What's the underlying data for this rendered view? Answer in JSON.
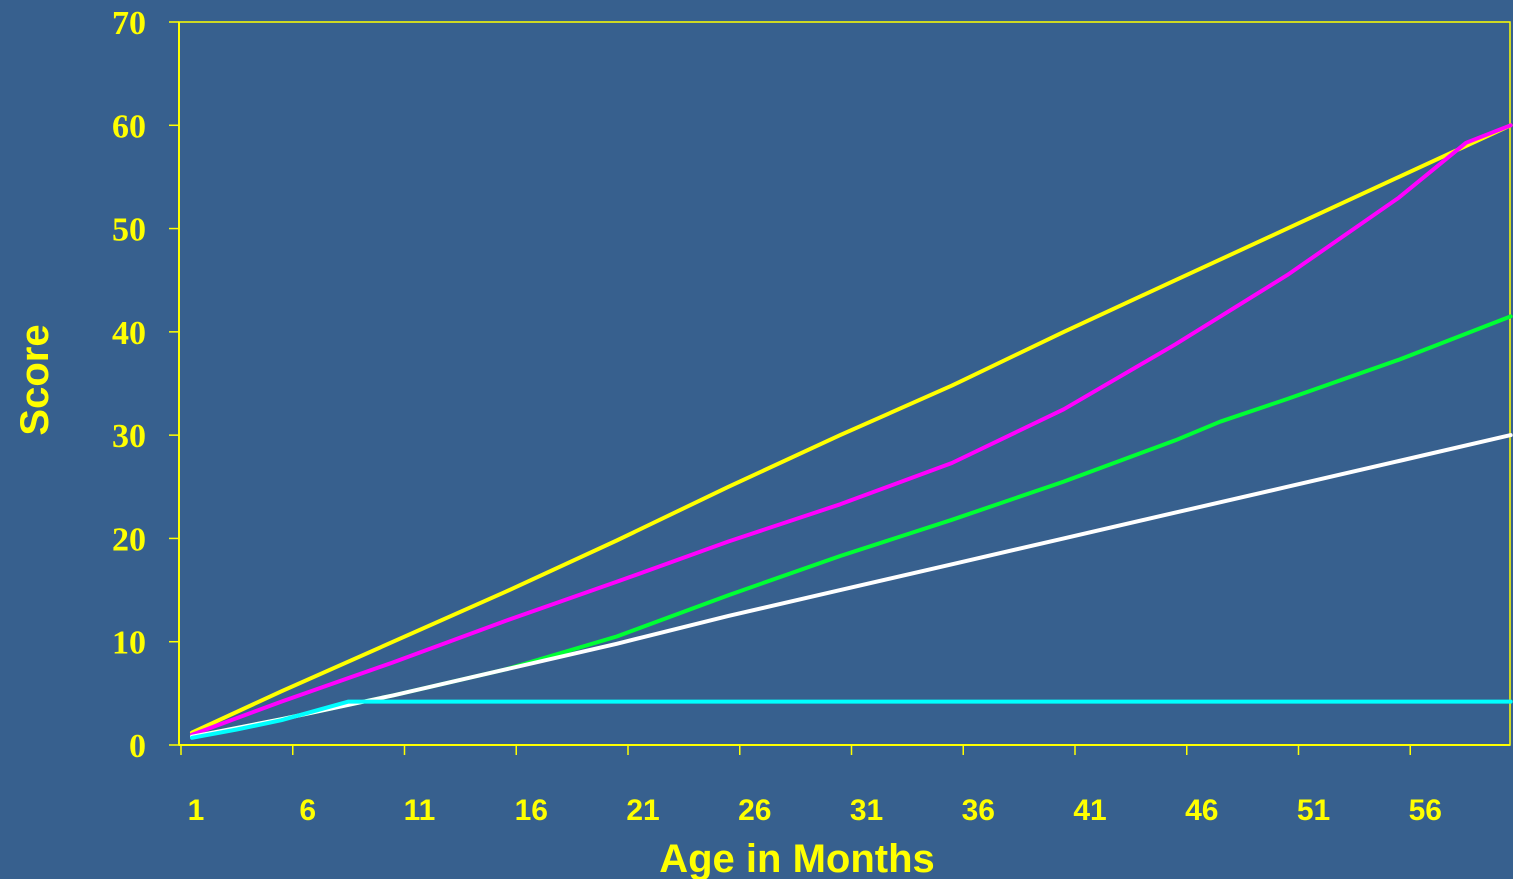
{
  "chart_data": {
    "type": "line",
    "title": "",
    "xlabel": "Age in Months",
    "ylabel": "Score",
    "xlim": [
      1,
      60
    ],
    "ylim": [
      0,
      70
    ],
    "yticks": [
      0,
      10,
      20,
      30,
      40,
      50,
      60,
      70
    ],
    "xticks": [
      1,
      6,
      11,
      16,
      21,
      26,
      31,
      36,
      41,
      46,
      51,
      56
    ],
    "grid": false,
    "colors": {
      "background": "#37608e",
      "axis": "#ffff00",
      "text": "#ffff00"
    },
    "series": [
      {
        "color": "#ffff00",
        "x": [
          1,
          5,
          10,
          15,
          20,
          25,
          30,
          35,
          40,
          45,
          50,
          55,
          60
        ],
        "y": [
          1.2,
          5.2,
          10.0,
          14.8,
          19.8,
          25.0,
          30.0,
          34.8,
          40.0,
          45.0,
          50.0,
          55.0,
          60.0
        ]
      },
      {
        "color": "#ff00ff",
        "x": [
          1,
          5,
          10,
          15,
          20,
          25,
          30,
          35,
          40,
          45,
          50,
          52,
          55,
          58,
          60
        ],
        "y": [
          1.0,
          4.2,
          8.0,
          12.0,
          15.8,
          19.7,
          23.3,
          27.3,
          32.5,
          38.8,
          45.5,
          48.5,
          53.0,
          58.3,
          60.0
        ]
      },
      {
        "color": "#00ff33",
        "x": [
          1,
          5,
          10,
          15,
          20,
          25,
          30,
          35,
          40,
          45,
          47,
          50,
          55,
          60
        ],
        "y": [
          0.8,
          2.5,
          4.8,
          7.3,
          10.5,
          14.5,
          18.3,
          21.8,
          25.5,
          29.5,
          31.3,
          33.5,
          37.3,
          41.5
        ]
      },
      {
        "color": "#ffffff",
        "x": [
          1,
          5,
          10,
          15,
          20,
          25,
          30,
          35,
          40,
          45,
          50,
          55,
          60
        ],
        "y": [
          0.8,
          2.5,
          4.8,
          7.3,
          9.8,
          12.5,
          15.0,
          17.5,
          20.0,
          22.5,
          25.0,
          27.5,
          30.0
        ]
      },
      {
        "color": "#00ffff",
        "x": [
          1,
          3,
          5,
          8,
          60
        ],
        "y": [
          0.7,
          1.5,
          2.4,
          4.2,
          4.2
        ]
      }
    ]
  }
}
